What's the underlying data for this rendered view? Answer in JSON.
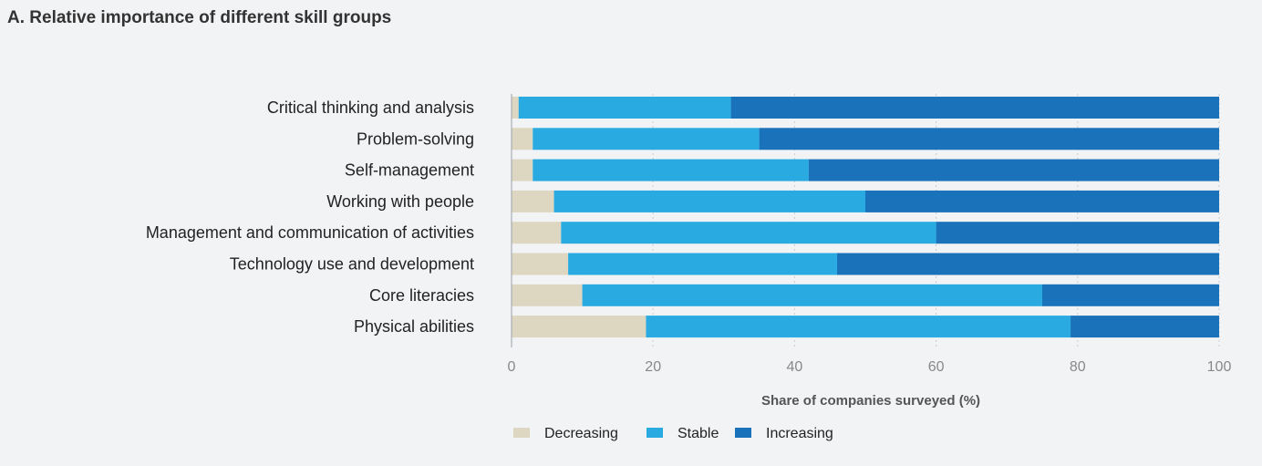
{
  "chart_data": {
    "type": "bar",
    "orientation": "horizontal",
    "stacked": true,
    "title": "A. Relative importance of different skill groups",
    "xlabel": "Share of companies surveyed (%)",
    "ylabel": "",
    "xlim": [
      0,
      100
    ],
    "xticks": [
      "0",
      "20",
      "40",
      "60",
      "80",
      "100"
    ],
    "grid": true,
    "legend_position": "bottom",
    "categories": [
      "Critical thinking and analysis",
      "Problem-solving",
      "Self-management",
      "Working with people",
      "Management and communication of activities",
      "Technology use and development",
      "Core literacies",
      "Physical abilities"
    ],
    "series": [
      {
        "name": "Decreasing",
        "color": "#ddd6c1",
        "values": [
          1,
          3,
          3,
          6,
          7,
          8,
          10,
          19
        ]
      },
      {
        "name": "Stable",
        "color": "#29abe2",
        "values": [
          30,
          32,
          39,
          44,
          53,
          38,
          65,
          60
        ]
      },
      {
        "name": "Increasing",
        "color": "#1a72ba",
        "values": [
          69,
          65,
          58,
          50,
          40,
          54,
          25,
          21
        ]
      }
    ]
  }
}
